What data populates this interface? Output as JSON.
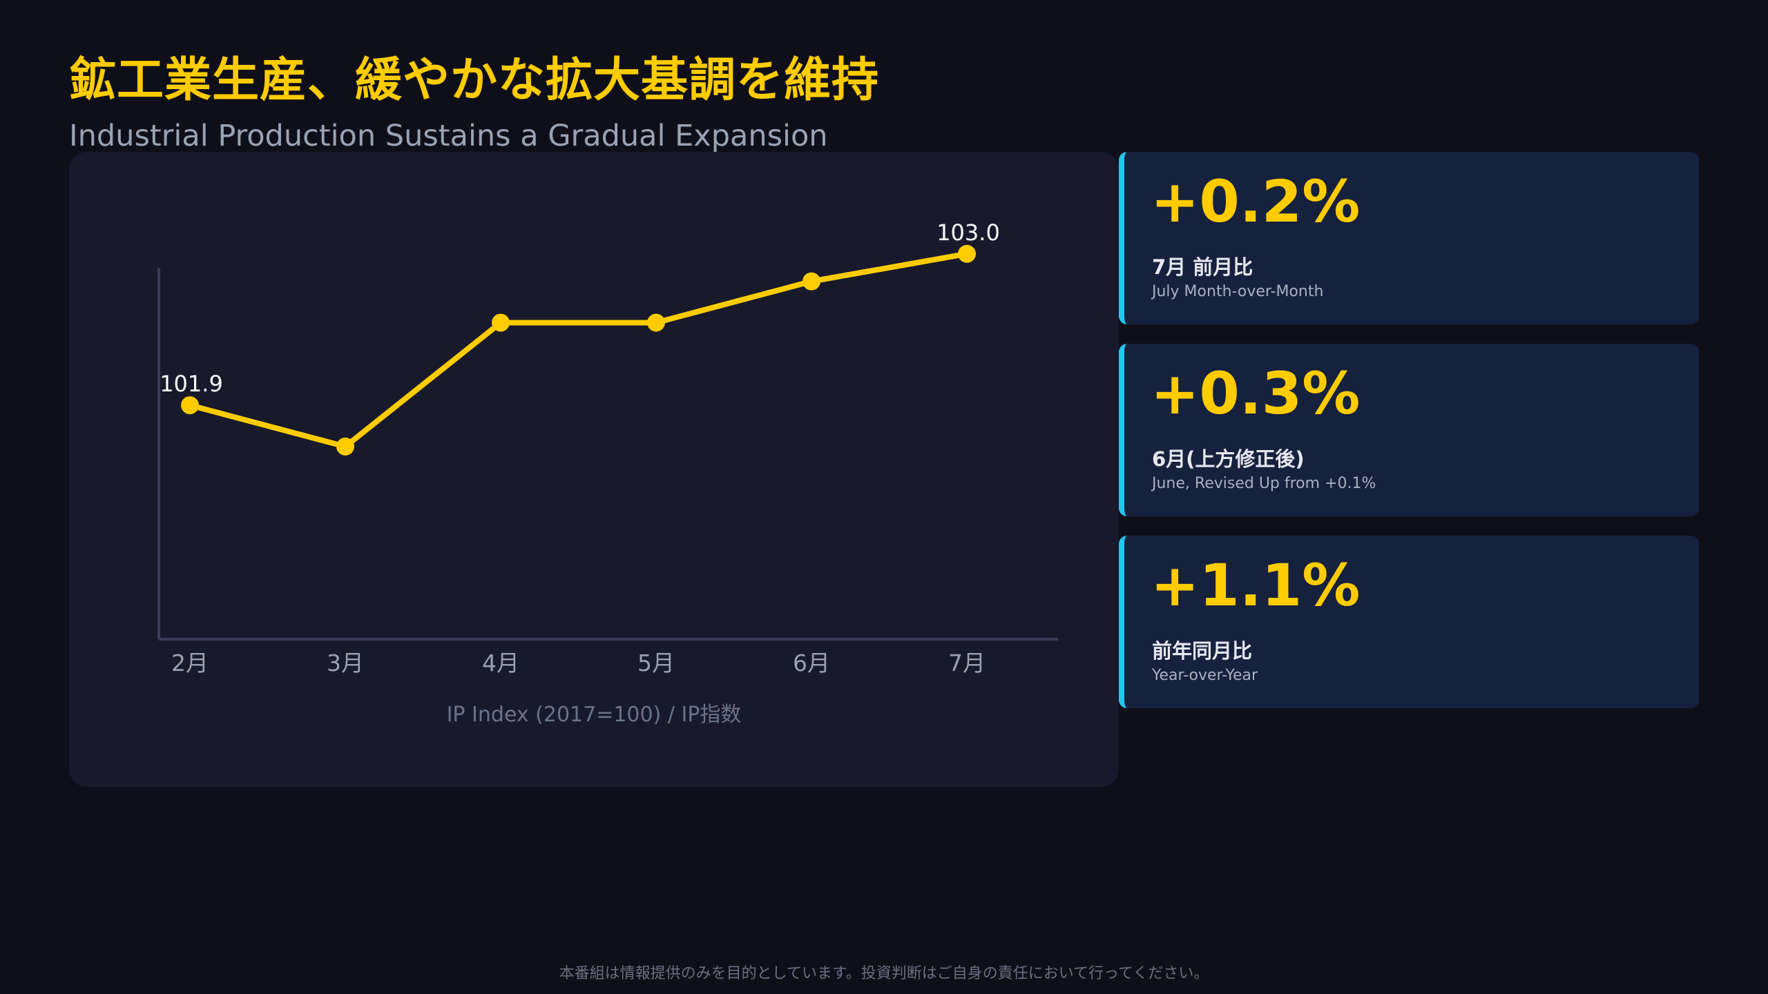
{
  "header": {
    "title": "鉱工業生産、緩やかな拡大基調を維持",
    "subtitle": "Industrial Production Sustains a Gradual Expansion"
  },
  "chart_data": {
    "type": "line",
    "categories": [
      "2月",
      "3月",
      "4月",
      "5月",
      "6月",
      "7月"
    ],
    "values": [
      101.9,
      101.6,
      102.5,
      102.5,
      102.8,
      103.0
    ],
    "data_labels": [
      {
        "index": 0,
        "text": "101.9"
      },
      {
        "index": 5,
        "text": "103.0"
      }
    ],
    "caption": "IP Index (2017=100) / IP指数",
    "ylim": [
      100.2,
      103.4
    ],
    "grid": false,
    "line_color": "#ffcc00",
    "axis_color": "#3a3d55"
  },
  "stats": [
    {
      "value": "+0.2%",
      "label_ja": "7月 前月比",
      "label_en": "July Month-over-Month"
    },
    {
      "value": "+0.3%",
      "label_ja": "6月(上方修正後)",
      "label_en": "June, Revised Up from +0.1%"
    },
    {
      "value": "+1.1%",
      "label_ja": "前年同月比",
      "label_en": "Year-over-Year"
    }
  ],
  "colors": {
    "background": "#0f0f1a",
    "accent": "#ffcc00",
    "card_border": "#22c6ee",
    "card_bg": "#16213e"
  },
  "footer": {
    "disclaimer": "本番組は情報提供のみを目的としています。投資判断はご自身の責任において行ってください。"
  }
}
